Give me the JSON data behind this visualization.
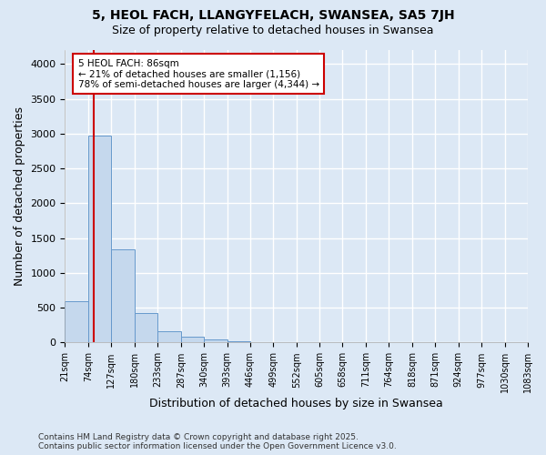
{
  "title1": "5, HEOL FACH, LLANGYFELACH, SWANSEA, SA5 7JH",
  "title2": "Size of property relative to detached houses in Swansea",
  "xlabel": "Distribution of detached houses by size in Swansea",
  "ylabel": "Number of detached properties",
  "bin_edges": [
    21,
    74,
    127,
    180,
    233,
    287,
    340,
    393,
    446,
    499,
    552,
    605,
    658,
    711,
    764,
    818,
    871,
    924,
    977,
    1030,
    1083
  ],
  "bar_heights": [
    590,
    2970,
    1340,
    430,
    160,
    85,
    45,
    18,
    10,
    6,
    4,
    3,
    2,
    2,
    1,
    1,
    1,
    1,
    0,
    1
  ],
  "bar_color": "#c5d8ed",
  "bar_edge_color": "#6699cc",
  "property_size": 86,
  "annotation_title": "5 HEOL FACH: 86sqm",
  "annotation_line1": "← 21% of detached houses are smaller (1,156)",
  "annotation_line2": "78% of semi-detached houses are larger (4,344) →",
  "vline_color": "#cc0000",
  "annotation_box_color": "#cc0000",
  "ylim": [
    0,
    4200
  ],
  "yticks": [
    0,
    500,
    1000,
    1500,
    2000,
    2500,
    3000,
    3500,
    4000
  ],
  "footer1": "Contains HM Land Registry data © Crown copyright and database right 2025.",
  "footer2": "Contains public sector information licensed under the Open Government Licence v3.0.",
  "bg_color": "#dce8f5",
  "plot_bg_color": "#dce8f5",
  "fig_bg_color": "#dce8f5"
}
